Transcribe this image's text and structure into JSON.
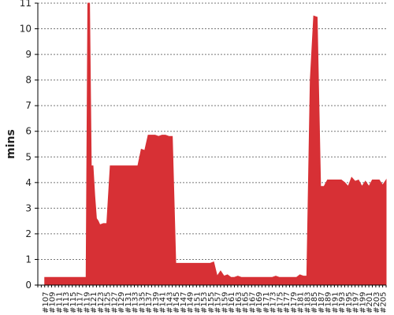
{
  "chart_data": {
    "type": "area",
    "title": "",
    "xlabel": "",
    "ylabel": "mins",
    "ylim": [
      0,
      11
    ],
    "yticks": [
      0,
      1,
      2,
      3,
      4,
      5,
      6,
      7,
      8,
      9,
      10,
      11
    ],
    "grid": true,
    "legend": "none",
    "color": "#d73035",
    "xlim": [
      105,
      206
    ],
    "x_ticks": [
      107,
      109,
      111,
      113,
      115,
      117,
      119,
      121,
      123,
      125,
      127,
      129,
      131,
      133,
      135,
      137,
      139,
      141,
      143,
      145,
      147,
      149,
      151,
      153,
      155,
      157,
      159,
      161,
      163,
      165,
      167,
      169,
      171,
      173,
      175,
      177,
      179,
      181,
      183,
      185,
      187,
      189,
      191,
      193,
      195,
      197,
      199,
      201,
      203,
      205
    ],
    "x_tick_labels": [
      "#107",
      "#109",
      "#111",
      "#113",
      "#115",
      "#117",
      "#119",
      "#121",
      "#123",
      "#125",
      "#127",
      "#129",
      "#131",
      "#133",
      "#135",
      "#137",
      "#139",
      "#141",
      "#143",
      "#145",
      "#147",
      "#149",
      "#151",
      "#153",
      "#155",
      "#157",
      "#159",
      "#161",
      "#163",
      "#165",
      "#167",
      "#169",
      "#171",
      "#173",
      "#175",
      "#177",
      "#179",
      "#181",
      "#183",
      "#185",
      "#187",
      "#189",
      "#191",
      "#193",
      "#195",
      "#197",
      "#199",
      "#201",
      "#203",
      "#205"
    ],
    "series": [
      {
        "x": [
          107,
          108,
          109,
          110,
          111,
          112,
          113,
          114,
          115,
          116,
          117,
          118,
          119,
          119.5,
          120,
          120.5,
          121,
          121.5,
          122,
          122.5,
          123,
          124,
          125,
          126,
          127,
          128,
          129,
          130,
          131,
          132,
          133,
          134,
          135,
          136,
          137,
          138,
          139,
          140,
          141,
          142,
          143,
          144,
          145,
          146,
          147,
          148,
          149,
          150,
          151,
          152,
          153,
          154,
          155,
          156,
          157,
          158,
          159,
          160,
          161,
          162,
          163,
          164,
          165,
          166,
          167,
          168,
          169,
          170,
          171,
          172,
          173,
          174,
          175,
          176,
          177,
          178,
          179,
          180,
          181,
          182,
          183,
          184,
          185,
          186,
          187,
          188,
          189,
          190,
          191,
          192,
          193,
          194,
          195,
          196,
          197,
          198,
          199,
          200,
          201,
          202,
          203,
          204,
          205,
          206
        ],
        "values": [
          0.3,
          0.3,
          0.3,
          0.3,
          0.3,
          0.3,
          0.3,
          0.3,
          0.3,
          0.3,
          0.3,
          0.3,
          0.3,
          11.0,
          11.0,
          4.65,
          4.65,
          3.5,
          2.6,
          2.5,
          2.35,
          2.4,
          2.4,
          4.65,
          4.65,
          4.65,
          4.65,
          4.65,
          4.65,
          4.65,
          4.65,
          4.65,
          5.3,
          5.25,
          5.85,
          5.85,
          5.85,
          5.8,
          5.85,
          5.85,
          5.8,
          5.8,
          0.85,
          0.85,
          0.85,
          0.85,
          0.85,
          0.85,
          0.85,
          0.85,
          0.85,
          0.85,
          0.85,
          0.9,
          0.35,
          0.55,
          0.35,
          0.4,
          0.3,
          0.3,
          0.35,
          0.3,
          0.3,
          0.3,
          0.3,
          0.3,
          0.3,
          0.3,
          0.3,
          0.3,
          0.3,
          0.35,
          0.3,
          0.3,
          0.3,
          0.3,
          0.3,
          0.3,
          0.4,
          0.35,
          0.35,
          8.0,
          10.5,
          10.45,
          3.85,
          3.85,
          4.1,
          4.1,
          4.1,
          4.1,
          4.1,
          4.0,
          3.85,
          4.2,
          4.05,
          4.1,
          3.85,
          4.05,
          3.85,
          4.1,
          4.1,
          4.1,
          3.9,
          4.1
        ]
      }
    ]
  }
}
